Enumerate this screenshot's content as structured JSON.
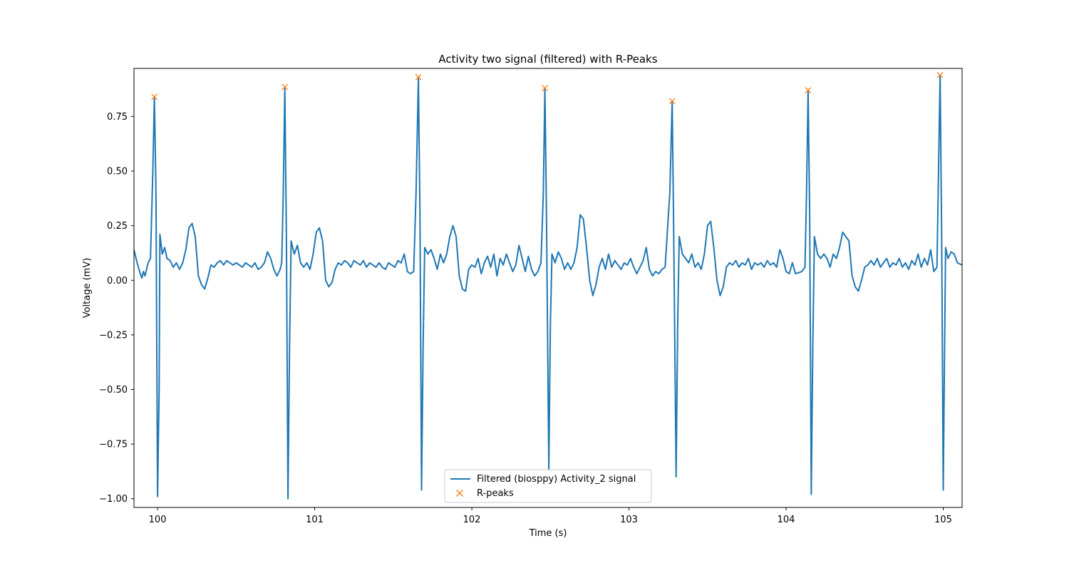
{
  "chart_data": {
    "type": "line",
    "title": "Activity two signal (filtered) with R-Peaks",
    "xlabel": "Time (s)",
    "ylabel": "Voltage (mV)",
    "xlim": [
      99.85,
      105.12
    ],
    "ylim": [
      -1.04,
      0.97
    ],
    "grid": false,
    "legend_position": "lower center",
    "x_ticks": [
      100,
      101,
      102,
      103,
      104,
      105
    ],
    "x_tick_labels": [
      "100",
      "101",
      "102",
      "103",
      "104",
      "105"
    ],
    "y_ticks": [
      -1.0,
      -0.75,
      -0.5,
      -0.25,
      0.0,
      0.25,
      0.5,
      0.75
    ],
    "y_tick_labels": [
      "−1.00",
      "−0.75",
      "−0.50",
      "−0.25",
      "0.00",
      "0.25",
      "0.50",
      "0.75"
    ],
    "series": [
      {
        "name": "Filtered (biosppy) Activity_2 signal",
        "color": "#1f77b4",
        "style": "line",
        "points": [
          [
            99.85,
            0.14
          ],
          [
            99.87,
            0.08
          ],
          [
            99.89,
            0.03
          ],
          [
            99.9,
            0.01
          ],
          [
            99.91,
            0.04
          ],
          [
            99.92,
            0.02
          ],
          [
            99.94,
            0.08
          ],
          [
            99.955,
            0.1
          ],
          [
            99.97,
            0.5
          ],
          [
            99.98,
            0.84
          ],
          [
            99.99,
            0.4
          ],
          [
            100.0,
            -0.99
          ],
          [
            100.01,
            -0.5
          ],
          [
            100.015,
            0.21
          ],
          [
            100.03,
            0.12
          ],
          [
            100.045,
            0.15
          ],
          [
            100.06,
            0.1
          ],
          [
            100.08,
            0.09
          ],
          [
            100.1,
            0.06
          ],
          [
            100.12,
            0.08
          ],
          [
            100.14,
            0.05
          ],
          [
            100.16,
            0.08
          ],
          [
            100.18,
            0.14
          ],
          [
            100.2,
            0.24
          ],
          [
            100.22,
            0.26
          ],
          [
            100.24,
            0.2
          ],
          [
            100.26,
            0.02
          ],
          [
            100.28,
            -0.02
          ],
          [
            100.3,
            -0.04
          ],
          [
            100.32,
            0.01
          ],
          [
            100.34,
            0.07
          ],
          [
            100.36,
            0.06
          ],
          [
            100.38,
            0.08
          ],
          [
            100.4,
            0.09
          ],
          [
            100.42,
            0.07
          ],
          [
            100.44,
            0.09
          ],
          [
            100.46,
            0.08
          ],
          [
            100.48,
            0.07
          ],
          [
            100.5,
            0.08
          ],
          [
            100.52,
            0.07
          ],
          [
            100.54,
            0.06
          ],
          [
            100.56,
            0.08
          ],
          [
            100.58,
            0.07
          ],
          [
            100.6,
            0.06
          ],
          [
            100.62,
            0.08
          ],
          [
            100.64,
            0.05
          ],
          [
            100.66,
            0.06
          ],
          [
            100.68,
            0.08
          ],
          [
            100.7,
            0.13
          ],
          [
            100.72,
            0.1
          ],
          [
            100.74,
            0.05
          ],
          [
            100.76,
            0.02
          ],
          [
            100.78,
            0.05
          ],
          [
            100.79,
            0.08
          ],
          [
            100.8,
            0.4
          ],
          [
            100.81,
            0.88
          ],
          [
            100.82,
            0.2
          ],
          [
            100.83,
            -1.0
          ],
          [
            100.84,
            -0.3
          ],
          [
            100.85,
            0.18
          ],
          [
            100.87,
            0.12
          ],
          [
            100.89,
            0.16
          ],
          [
            100.91,
            0.08
          ],
          [
            100.93,
            0.06
          ],
          [
            100.95,
            0.08
          ],
          [
            100.97,
            0.05
          ],
          [
            100.99,
            0.12
          ],
          [
            101.01,
            0.22
          ],
          [
            101.03,
            0.24
          ],
          [
            101.05,
            0.18
          ],
          [
            101.07,
            0.0
          ],
          [
            101.09,
            -0.03
          ],
          [
            101.11,
            -0.01
          ],
          [
            101.13,
            0.05
          ],
          [
            101.15,
            0.08
          ],
          [
            101.17,
            0.07
          ],
          [
            101.19,
            0.09
          ],
          [
            101.21,
            0.08
          ],
          [
            101.23,
            0.06
          ],
          [
            101.25,
            0.09
          ],
          [
            101.27,
            0.08
          ],
          [
            101.29,
            0.07
          ],
          [
            101.31,
            0.09
          ],
          [
            101.33,
            0.06
          ],
          [
            101.35,
            0.08
          ],
          [
            101.37,
            0.07
          ],
          [
            101.39,
            0.06
          ],
          [
            101.41,
            0.08
          ],
          [
            101.43,
            0.06
          ],
          [
            101.45,
            0.05
          ],
          [
            101.47,
            0.08
          ],
          [
            101.49,
            0.07
          ],
          [
            101.51,
            0.06
          ],
          [
            101.53,
            0.09
          ],
          [
            101.55,
            0.08
          ],
          [
            101.57,
            0.12
          ],
          [
            101.59,
            0.04
          ],
          [
            101.61,
            0.03
          ],
          [
            101.63,
            0.04
          ],
          [
            101.645,
            0.4
          ],
          [
            101.66,
            0.93
          ],
          [
            101.67,
            0.3
          ],
          [
            101.68,
            -0.96
          ],
          [
            101.69,
            -0.3
          ],
          [
            101.7,
            0.15
          ],
          [
            101.72,
            0.12
          ],
          [
            101.74,
            0.14
          ],
          [
            101.76,
            0.1
          ],
          [
            101.78,
            0.05
          ],
          [
            101.8,
            0.12
          ],
          [
            101.82,
            0.08
          ],
          [
            101.84,
            0.12
          ],
          [
            101.86,
            0.2
          ],
          [
            101.88,
            0.25
          ],
          [
            101.9,
            0.2
          ],
          [
            101.92,
            0.02
          ],
          [
            101.94,
            -0.04
          ],
          [
            101.96,
            -0.05
          ],
          [
            101.98,
            0.05
          ],
          [
            102.0,
            0.07
          ],
          [
            102.02,
            0.06
          ],
          [
            102.04,
            0.1
          ],
          [
            102.06,
            0.03
          ],
          [
            102.08,
            0.08
          ],
          [
            102.1,
            0.11
          ],
          [
            102.12,
            0.06
          ],
          [
            102.14,
            0.12
          ],
          [
            102.16,
            0.02
          ],
          [
            102.18,
            0.1
          ],
          [
            102.2,
            0.07
          ],
          [
            102.22,
            0.12
          ],
          [
            102.24,
            0.08
          ],
          [
            102.26,
            0.04
          ],
          [
            102.28,
            0.07
          ],
          [
            102.3,
            0.16
          ],
          [
            102.32,
            0.1
          ],
          [
            102.34,
            0.04
          ],
          [
            102.36,
            0.11
          ],
          [
            102.38,
            0.05
          ],
          [
            102.4,
            0.02
          ],
          [
            102.42,
            0.04
          ],
          [
            102.44,
            0.08
          ],
          [
            102.455,
            0.4
          ],
          [
            102.465,
            0.88
          ],
          [
            102.475,
            0.3
          ],
          [
            102.49,
            -0.87
          ],
          [
            102.5,
            -0.2
          ],
          [
            102.51,
            0.12
          ],
          [
            102.53,
            0.08
          ],
          [
            102.55,
            0.13
          ],
          [
            102.57,
            0.1
          ],
          [
            102.59,
            0.05
          ],
          [
            102.61,
            0.08
          ],
          [
            102.63,
            0.05
          ],
          [
            102.65,
            0.08
          ],
          [
            102.67,
            0.15
          ],
          [
            102.69,
            0.3
          ],
          [
            102.71,
            0.28
          ],
          [
            102.73,
            0.15
          ],
          [
            102.75,
            0.0
          ],
          [
            102.77,
            -0.07
          ],
          [
            102.79,
            -0.02
          ],
          [
            102.81,
            0.06
          ],
          [
            102.83,
            0.1
          ],
          [
            102.85,
            0.05
          ],
          [
            102.87,
            0.12
          ],
          [
            102.89,
            0.06
          ],
          [
            102.91,
            0.09
          ],
          [
            102.93,
            0.07
          ],
          [
            102.95,
            0.05
          ],
          [
            102.97,
            0.08
          ],
          [
            102.99,
            0.07
          ],
          [
            103.01,
            0.1
          ],
          [
            103.03,
            0.06
          ],
          [
            103.05,
            0.03
          ],
          [
            103.07,
            0.06
          ],
          [
            103.09,
            0.09
          ],
          [
            103.11,
            0.15
          ],
          [
            103.13,
            0.05
          ],
          [
            103.15,
            0.02
          ],
          [
            103.17,
            0.04
          ],
          [
            103.19,
            0.03
          ],
          [
            103.21,
            0.05
          ],
          [
            103.23,
            0.06
          ],
          [
            103.26,
            0.4
          ],
          [
            103.275,
            0.82
          ],
          [
            103.285,
            0.2
          ],
          [
            103.3,
            -0.9
          ],
          [
            103.31,
            -0.2
          ],
          [
            103.32,
            0.2
          ],
          [
            103.34,
            0.12
          ],
          [
            103.36,
            0.1
          ],
          [
            103.38,
            0.08
          ],
          [
            103.4,
            0.12
          ],
          [
            103.42,
            0.06
          ],
          [
            103.44,
            0.08
          ],
          [
            103.46,
            0.05
          ],
          [
            103.48,
            0.12
          ],
          [
            103.5,
            0.25
          ],
          [
            103.52,
            0.27
          ],
          [
            103.54,
            0.15
          ],
          [
            103.56,
            0.0
          ],
          [
            103.58,
            -0.07
          ],
          [
            103.6,
            -0.03
          ],
          [
            103.62,
            0.06
          ],
          [
            103.64,
            0.08
          ],
          [
            103.66,
            0.07
          ],
          [
            103.68,
            0.09
          ],
          [
            103.7,
            0.06
          ],
          [
            103.72,
            0.08
          ],
          [
            103.74,
            0.07
          ],
          [
            103.76,
            0.1
          ],
          [
            103.78,
            0.05
          ],
          [
            103.8,
            0.08
          ],
          [
            103.82,
            0.07
          ],
          [
            103.84,
            0.08
          ],
          [
            103.86,
            0.06
          ],
          [
            103.88,
            0.09
          ],
          [
            103.9,
            0.07
          ],
          [
            103.92,
            0.08
          ],
          [
            103.94,
            0.06
          ],
          [
            103.96,
            0.14
          ],
          [
            103.98,
            0.1
          ],
          [
            104.0,
            0.04
          ],
          [
            104.02,
            0.03
          ],
          [
            104.04,
            0.08
          ],
          [
            104.06,
            0.03
          ],
          [
            104.1,
            0.04
          ],
          [
            104.12,
            0.06
          ],
          [
            104.13,
            0.4
          ],
          [
            104.14,
            0.87
          ],
          [
            104.15,
            0.3
          ],
          [
            104.16,
            -0.98
          ],
          [
            104.17,
            -0.3
          ],
          [
            104.18,
            0.2
          ],
          [
            104.2,
            0.12
          ],
          [
            104.22,
            0.1
          ],
          [
            104.24,
            0.12
          ],
          [
            104.26,
            0.1
          ],
          [
            104.28,
            0.06
          ],
          [
            104.3,
            0.12
          ],
          [
            104.32,
            0.1
          ],
          [
            104.34,
            0.15
          ],
          [
            104.36,
            0.22
          ],
          [
            104.38,
            0.2
          ],
          [
            104.4,
            0.18
          ],
          [
            104.42,
            0.02
          ],
          [
            104.44,
            -0.03
          ],
          [
            104.46,
            -0.05
          ],
          [
            104.48,
            0.0
          ],
          [
            104.5,
            0.06
          ],
          [
            104.52,
            0.07
          ],
          [
            104.54,
            0.09
          ],
          [
            104.56,
            0.07
          ],
          [
            104.58,
            0.1
          ],
          [
            104.6,
            0.06
          ],
          [
            104.62,
            0.08
          ],
          [
            104.64,
            0.1
          ],
          [
            104.66,
            0.06
          ],
          [
            104.68,
            0.08
          ],
          [
            104.7,
            0.07
          ],
          [
            104.72,
            0.1
          ],
          [
            104.74,
            0.06
          ],
          [
            104.76,
            0.08
          ],
          [
            104.78,
            0.05
          ],
          [
            104.8,
            0.09
          ],
          [
            104.82,
            0.07
          ],
          [
            104.84,
            0.12
          ],
          [
            104.86,
            0.06
          ],
          [
            104.88,
            0.1
          ],
          [
            104.9,
            0.07
          ],
          [
            104.92,
            0.14
          ],
          [
            104.94,
            0.04
          ],
          [
            104.96,
            0.06
          ],
          [
            104.97,
            0.5
          ],
          [
            104.98,
            0.94
          ],
          [
            104.99,
            0.2
          ],
          [
            105.0,
            -0.96
          ],
          [
            105.01,
            -0.2
          ],
          [
            105.015,
            0.15
          ],
          [
            105.03,
            0.1
          ],
          [
            105.05,
            0.13
          ],
          [
            105.07,
            0.12
          ],
          [
            105.09,
            0.08
          ],
          [
            105.12,
            0.07
          ]
        ]
      },
      {
        "name": "R-peaks",
        "color": "#ff7f0e",
        "style": "x-markers",
        "points": [
          [
            99.98,
            0.84
          ],
          [
            100.81,
            0.885
          ],
          [
            101.66,
            0.93
          ],
          [
            102.465,
            0.88
          ],
          [
            103.275,
            0.82
          ],
          [
            104.14,
            0.87
          ],
          [
            104.98,
            0.94
          ]
        ]
      }
    ]
  }
}
